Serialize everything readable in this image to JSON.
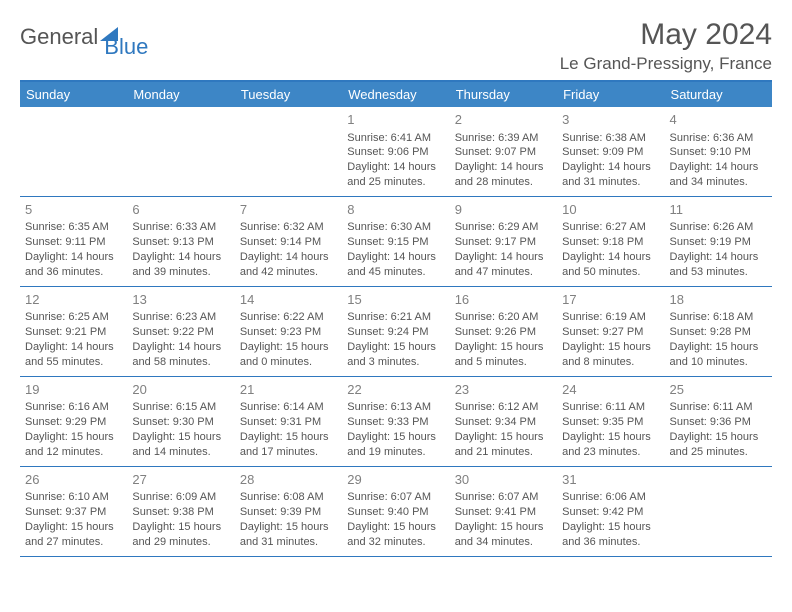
{
  "logo": {
    "part1": "General",
    "part2": "Blue"
  },
  "title": "May 2024",
  "location": "Le Grand-Pressigny, France",
  "colors": {
    "header_bg": "#3d86c6",
    "border": "#2f78bf",
    "text": "#555555",
    "daynum": "#808080"
  },
  "daysOfWeek": [
    "Sunday",
    "Monday",
    "Tuesday",
    "Wednesday",
    "Thursday",
    "Friday",
    "Saturday"
  ],
  "weeks": [
    [
      null,
      null,
      null,
      {
        "n": "1",
        "sr": "6:41 AM",
        "ss": "9:06 PM",
        "dl": "14 hours and 25 minutes."
      },
      {
        "n": "2",
        "sr": "6:39 AM",
        "ss": "9:07 PM",
        "dl": "14 hours and 28 minutes."
      },
      {
        "n": "3",
        "sr": "6:38 AM",
        "ss": "9:09 PM",
        "dl": "14 hours and 31 minutes."
      },
      {
        "n": "4",
        "sr": "6:36 AM",
        "ss": "9:10 PM",
        "dl": "14 hours and 34 minutes."
      }
    ],
    [
      {
        "n": "5",
        "sr": "6:35 AM",
        "ss": "9:11 PM",
        "dl": "14 hours and 36 minutes."
      },
      {
        "n": "6",
        "sr": "6:33 AM",
        "ss": "9:13 PM",
        "dl": "14 hours and 39 minutes."
      },
      {
        "n": "7",
        "sr": "6:32 AM",
        "ss": "9:14 PM",
        "dl": "14 hours and 42 minutes."
      },
      {
        "n": "8",
        "sr": "6:30 AM",
        "ss": "9:15 PM",
        "dl": "14 hours and 45 minutes."
      },
      {
        "n": "9",
        "sr": "6:29 AM",
        "ss": "9:17 PM",
        "dl": "14 hours and 47 minutes."
      },
      {
        "n": "10",
        "sr": "6:27 AM",
        "ss": "9:18 PM",
        "dl": "14 hours and 50 minutes."
      },
      {
        "n": "11",
        "sr": "6:26 AM",
        "ss": "9:19 PM",
        "dl": "14 hours and 53 minutes."
      }
    ],
    [
      {
        "n": "12",
        "sr": "6:25 AM",
        "ss": "9:21 PM",
        "dl": "14 hours and 55 minutes."
      },
      {
        "n": "13",
        "sr": "6:23 AM",
        "ss": "9:22 PM",
        "dl": "14 hours and 58 minutes."
      },
      {
        "n": "14",
        "sr": "6:22 AM",
        "ss": "9:23 PM",
        "dl": "15 hours and 0 minutes."
      },
      {
        "n": "15",
        "sr": "6:21 AM",
        "ss": "9:24 PM",
        "dl": "15 hours and 3 minutes."
      },
      {
        "n": "16",
        "sr": "6:20 AM",
        "ss": "9:26 PM",
        "dl": "15 hours and 5 minutes."
      },
      {
        "n": "17",
        "sr": "6:19 AM",
        "ss": "9:27 PM",
        "dl": "15 hours and 8 minutes."
      },
      {
        "n": "18",
        "sr": "6:18 AM",
        "ss": "9:28 PM",
        "dl": "15 hours and 10 minutes."
      }
    ],
    [
      {
        "n": "19",
        "sr": "6:16 AM",
        "ss": "9:29 PM",
        "dl": "15 hours and 12 minutes."
      },
      {
        "n": "20",
        "sr": "6:15 AM",
        "ss": "9:30 PM",
        "dl": "15 hours and 14 minutes."
      },
      {
        "n": "21",
        "sr": "6:14 AM",
        "ss": "9:31 PM",
        "dl": "15 hours and 17 minutes."
      },
      {
        "n": "22",
        "sr": "6:13 AM",
        "ss": "9:33 PM",
        "dl": "15 hours and 19 minutes."
      },
      {
        "n": "23",
        "sr": "6:12 AM",
        "ss": "9:34 PM",
        "dl": "15 hours and 21 minutes."
      },
      {
        "n": "24",
        "sr": "6:11 AM",
        "ss": "9:35 PM",
        "dl": "15 hours and 23 minutes."
      },
      {
        "n": "25",
        "sr": "6:11 AM",
        "ss": "9:36 PM",
        "dl": "15 hours and 25 minutes."
      }
    ],
    [
      {
        "n": "26",
        "sr": "6:10 AM",
        "ss": "9:37 PM",
        "dl": "15 hours and 27 minutes."
      },
      {
        "n": "27",
        "sr": "6:09 AM",
        "ss": "9:38 PM",
        "dl": "15 hours and 29 minutes."
      },
      {
        "n": "28",
        "sr": "6:08 AM",
        "ss": "9:39 PM",
        "dl": "15 hours and 31 minutes."
      },
      {
        "n": "29",
        "sr": "6:07 AM",
        "ss": "9:40 PM",
        "dl": "15 hours and 32 minutes."
      },
      {
        "n": "30",
        "sr": "6:07 AM",
        "ss": "9:41 PM",
        "dl": "15 hours and 34 minutes."
      },
      {
        "n": "31",
        "sr": "6:06 AM",
        "ss": "9:42 PM",
        "dl": "15 hours and 36 minutes."
      },
      null
    ]
  ],
  "labels": {
    "sunrise": "Sunrise: ",
    "sunset": "Sunset: ",
    "daylight": "Daylight: "
  }
}
